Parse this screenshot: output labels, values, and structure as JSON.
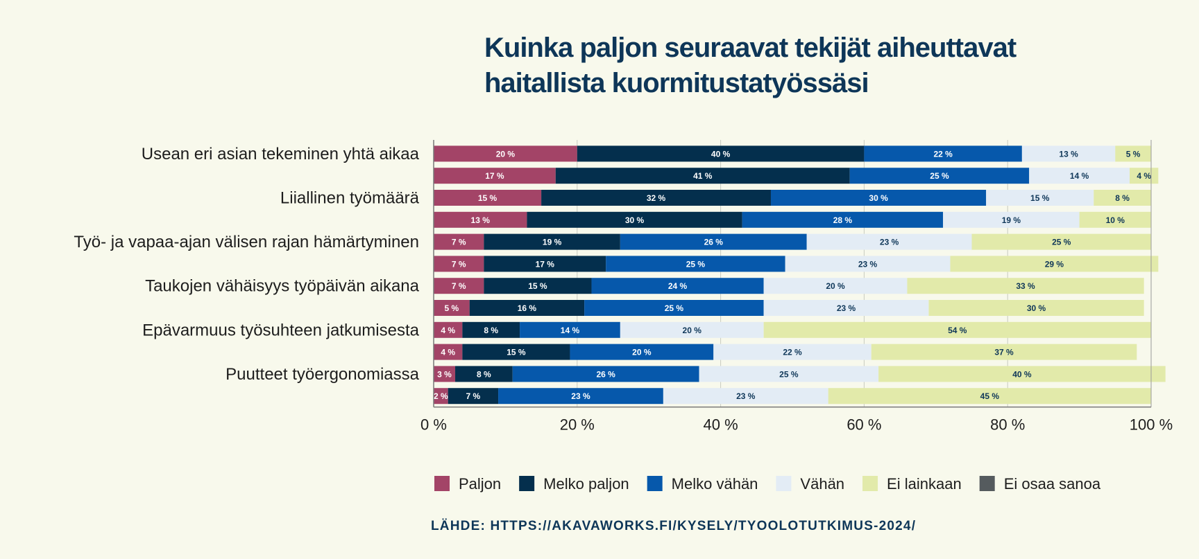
{
  "title_line1": "Kuinka paljon seuraavat tekijät aiheuttavat",
  "title_line2": "haitallista kuormitustatyössäsi",
  "source": "LÄHDE: HTTPS://AKAVAWORKS.FI/KYSELY/TYOOLOTUTKIMUS-2024/",
  "chart_data": {
    "type": "bar",
    "orientation": "horizontal",
    "stacked": true,
    "xlim": [
      0,
      100
    ],
    "x_ticks": [
      "0 %",
      "20 %",
      "40 %",
      "60 %",
      "80 %",
      "100 %"
    ],
    "grid": true,
    "legend_position": "bottom",
    "row_labels": [
      "Usean eri asian tekeminen yhtä aikaa",
      "",
      "Liiallinen työmäärä",
      "",
      "Työ- ja vapaa-ajan välisen rajan hämärtyminen",
      "",
      "Taukojen vähäisyys työpäivän aikana",
      "",
      "Epävarmuus työsuhteen jatkumisesta",
      "",
      "Puutteet työergonomiassa",
      ""
    ],
    "series": [
      {
        "name": "Paljon",
        "color": "#a34467",
        "label_color": "#ffffff",
        "values": [
          20,
          17,
          15,
          13,
          7,
          7,
          7,
          5,
          4,
          4,
          3,
          2
        ]
      },
      {
        "name": "Melko paljon",
        "color": "#042f4d",
        "label_color": "#ffffff",
        "values": [
          40,
          41,
          32,
          30,
          19,
          17,
          15,
          16,
          8,
          15,
          8,
          7
        ]
      },
      {
        "name": "Melko vähän",
        "color": "#0658ab",
        "label_color": "#ffffff",
        "values": [
          22,
          25,
          30,
          28,
          26,
          25,
          24,
          25,
          14,
          20,
          26,
          23
        ]
      },
      {
        "name": "Vähän",
        "color": "#e3ecf5",
        "label_color": "#0e3658",
        "values": [
          13,
          14,
          15,
          19,
          23,
          23,
          20,
          23,
          20,
          22,
          25,
          23
        ]
      },
      {
        "name": "Ei lainkaan",
        "color": "#e2eaaa",
        "label_color": "#0e3658",
        "values": [
          5,
          4,
          8,
          10,
          25,
          29,
          33,
          30,
          54,
          37,
          40,
          45
        ]
      },
      {
        "name": "Ei osaa sanoa",
        "color": "#555b5e",
        "label_color": "#ffffff",
        "values": [
          0,
          0,
          0,
          0,
          0,
          0,
          0,
          0,
          0,
          0,
          0,
          0
        ]
      }
    ]
  }
}
